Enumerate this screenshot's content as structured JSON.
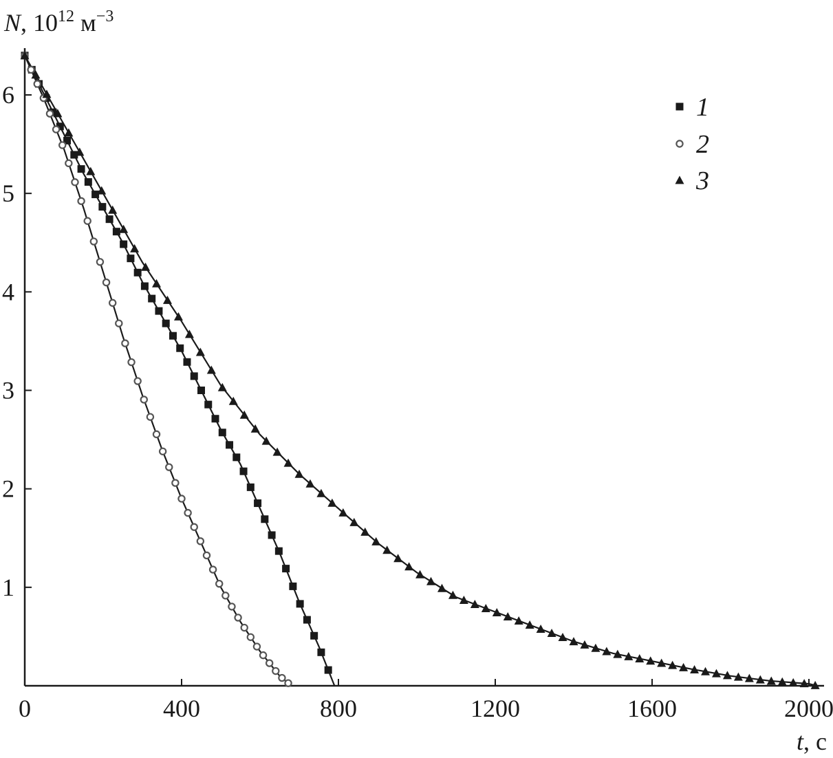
{
  "chart_data": {
    "type": "scatter",
    "xlabel": "t, c",
    "ylabel": "N, 10^12 м^-3",
    "xlim": [
      0,
      2070
    ],
    "ylim": [
      0,
      6.45
    ],
    "xticks": [
      0,
      400,
      800,
      1200,
      1600,
      2000
    ],
    "yticks": [
      1,
      2,
      3,
      4,
      5,
      6
    ],
    "legend_position": "top-right",
    "grid": false,
    "series": [
      {
        "name": "1",
        "marker": "square",
        "x": [
          0,
          50,
          100,
          150,
          200,
          250,
          300,
          350,
          400,
          450,
          500,
          550,
          600,
          650,
          700,
          750,
          790
        ],
        "y": [
          6.4,
          6.0,
          5.6,
          5.2,
          4.85,
          4.5,
          4.1,
          3.75,
          3.4,
          3.0,
          2.6,
          2.25,
          1.8,
          1.35,
          0.85,
          0.4,
          0.0
        ]
      },
      {
        "name": "2",
        "marker": "circle",
        "x": [
          0,
          50,
          100,
          150,
          200,
          250,
          300,
          350,
          400,
          450,
          500,
          550,
          600,
          650,
          680
        ],
        "y": [
          6.4,
          5.95,
          5.45,
          4.85,
          4.2,
          3.55,
          2.95,
          2.4,
          1.9,
          1.45,
          1.0,
          0.65,
          0.35,
          0.1,
          0.0
        ]
      },
      {
        "name": "3",
        "marker": "triangle",
        "x": [
          0,
          100,
          200,
          300,
          400,
          500,
          600,
          700,
          800,
          900,
          1000,
          1100,
          1200,
          1300,
          1400,
          1500,
          1600,
          1700,
          1800,
          1900,
          2000,
          2020
        ],
        "y": [
          6.4,
          5.7,
          5.0,
          4.3,
          3.7,
          3.05,
          2.55,
          2.15,
          1.8,
          1.45,
          1.15,
          0.9,
          0.75,
          0.6,
          0.45,
          0.33,
          0.25,
          0.17,
          0.1,
          0.05,
          0.02,
          0.0
        ]
      }
    ]
  }
}
